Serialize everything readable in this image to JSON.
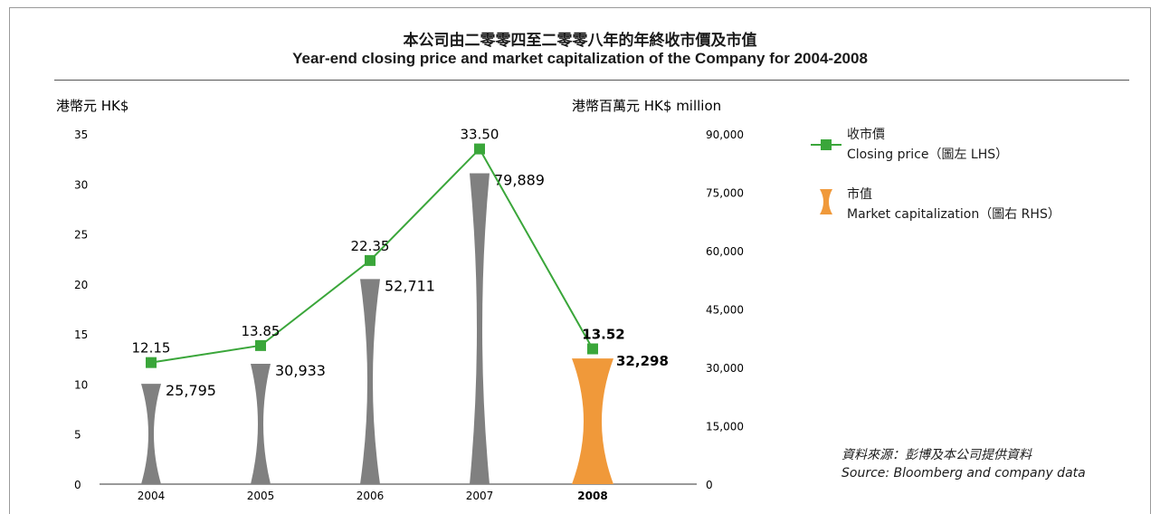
{
  "title_cn": "本公司由二零零四至二零零八年的年終收市價及市值",
  "title_en": "Year-end closing price and market capitalization of the Company for 2004-2008",
  "chart_data": {
    "type": "bar",
    "categories": [
      "2004",
      "2005",
      "2006",
      "2007",
      "2008"
    ],
    "highlight_category": "2008",
    "left_axis": {
      "label": "港幣元 HK$",
      "min": 0,
      "max": 35,
      "ticks": [
        "0",
        "5",
        "10",
        "15",
        "20",
        "25",
        "30",
        "35"
      ]
    },
    "right_axis": {
      "label": "港幣百萬元 HK$ million",
      "min": 0,
      "max": 90000,
      "ticks": [
        "0",
        "15,000",
        "30,000",
        "45,000",
        "60,000",
        "75,000",
        "90,000"
      ]
    },
    "series": [
      {
        "name": "Closing price",
        "name_cn": "收市價",
        "axis_note": "（圖左 LHS）",
        "type": "line",
        "color": "#3aa63a",
        "values": [
          12.15,
          13.85,
          22.35,
          33.5,
          13.52
        ],
        "labels": [
          "12.15",
          "13.85",
          "22.35",
          "33.50",
          "13.52"
        ]
      },
      {
        "name": "Market capitalization",
        "name_cn": "市值",
        "axis_note": "（圖右 RHS）",
        "type": "bar",
        "color": "#808080",
        "highlight_color": "#f0993a",
        "values": [
          25795,
          30933,
          52711,
          79889,
          32298
        ],
        "labels": [
          "25,795",
          "30,933",
          "52,711",
          "79,889",
          "32,298"
        ]
      }
    ],
    "grid": false,
    "legend_position": "right"
  },
  "source_cn": "資料來源：彭博及本公司提供資料",
  "source_en": "Source: Bloomberg and company data"
}
